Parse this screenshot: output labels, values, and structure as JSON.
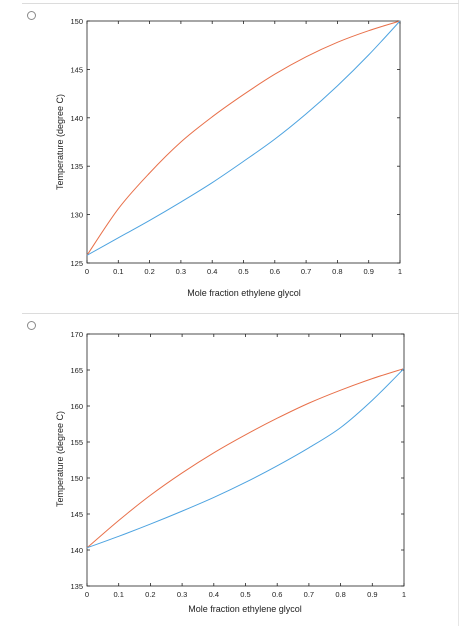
{
  "options": [
    {
      "id": "option-1"
    },
    {
      "id": "option-2"
    }
  ],
  "chart_data": [
    {
      "type": "line",
      "title": "",
      "xlabel": "Mole fraction ethylene glycol",
      "ylabel": "Temperature (degree C)",
      "xlim": [
        0,
        1
      ],
      "ylim": [
        125,
        150
      ],
      "xticks": [
        "0",
        "0.1",
        "0.2",
        "0.3",
        "0.4",
        "0.5",
        "0.6",
        "0.7",
        "0.8",
        "0.9",
        "1"
      ],
      "yticks": [
        "125",
        "130",
        "135",
        "140",
        "145",
        "150"
      ],
      "grid": false,
      "series": [
        {
          "color": "#e8704a",
          "x": [
            0,
            0.1,
            0.2,
            0.3,
            0.4,
            0.5,
            0.6,
            0.7,
            0.8,
            0.9,
            1
          ],
          "y": [
            125.8,
            130.6,
            134.3,
            137.5,
            140.1,
            142.4,
            144.5,
            146.3,
            147.8,
            149.0,
            150
          ]
        },
        {
          "color": "#4da3e0",
          "x": [
            0,
            0.1,
            0.2,
            0.3,
            0.4,
            0.5,
            0.6,
            0.7,
            0.8,
            0.9,
            1
          ],
          "y": [
            125.8,
            127.6,
            129.4,
            131.3,
            133.3,
            135.5,
            137.8,
            140.4,
            143.3,
            146.5,
            150
          ]
        }
      ]
    },
    {
      "type": "line",
      "title": "",
      "xlabel": "Mole fraction ethylene glycol",
      "ylabel": "Temperature (degree C)",
      "xlim": [
        0,
        1
      ],
      "ylim": [
        135,
        170
      ],
      "xticks": [
        "0",
        "0.1",
        "0.2",
        "0.3",
        "0.4",
        "0.5",
        "0.6",
        "0.7",
        "0.8",
        "0.9",
        "1"
      ],
      "yticks": [
        "135",
        "140",
        "145",
        "150",
        "155",
        "160",
        "165",
        "170"
      ],
      "grid": false,
      "series": [
        {
          "color": "#e8704a",
          "x": [
            0,
            0.1,
            0.2,
            0.3,
            0.4,
            0.5,
            0.6,
            0.7,
            0.8,
            0.9,
            1
          ],
          "y": [
            140.3,
            144.1,
            147.6,
            150.7,
            153.5,
            156.0,
            158.3,
            160.4,
            162.2,
            163.8,
            165.2
          ]
        },
        {
          "color": "#4da3e0",
          "x": [
            0,
            0.1,
            0.2,
            0.3,
            0.4,
            0.5,
            0.6,
            0.7,
            0.8,
            0.9,
            1
          ],
          "y": [
            140.3,
            141.9,
            143.6,
            145.4,
            147.3,
            149.4,
            151.7,
            154.2,
            157.0,
            160.8,
            165.2
          ]
        }
      ]
    }
  ]
}
